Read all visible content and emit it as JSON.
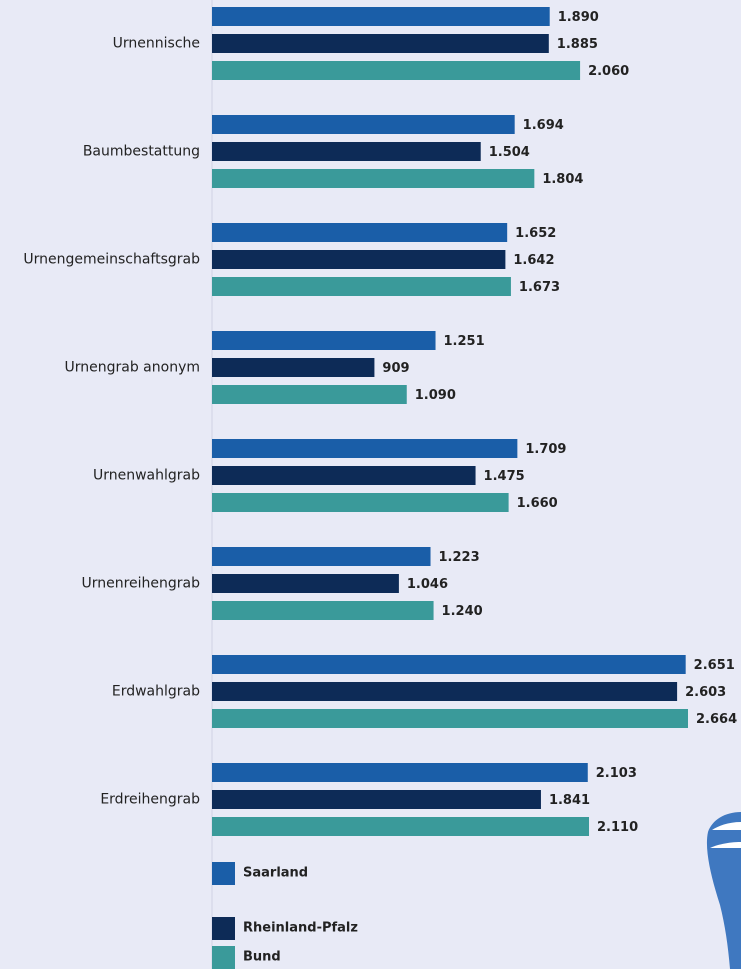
{
  "chart_data": {
    "type": "bar",
    "orientation": "horizontal",
    "categories": [
      "Urnennische",
      "Baumbestattung",
      "Urnengemeinschaftsgrab",
      "Urnengrab anonym",
      "Urnenwahlgrab",
      "Urnenreihengrab",
      "Erdwahlgrab",
      "Erdreihengrab"
    ],
    "series": [
      {
        "name": "Saarland",
        "color": "#1a5ea8",
        "values": [
          1890,
          1694,
          1652,
          1251,
          1709,
          1223,
          2651,
          2103
        ],
        "value_labels": [
          "1.890",
          "1.694",
          "1.652",
          "1.251",
          "1.709",
          "1.223",
          "2.651",
          "2.103"
        ]
      },
      {
        "name": "Rheinland-Pfalz",
        "color": "#0d2b57",
        "values": [
          1885,
          1504,
          1642,
          909,
          1475,
          1046,
          2603,
          1841
        ],
        "value_labels": [
          "1.885",
          "1.504",
          "1.642",
          "909",
          "1.475",
          "1.046",
          "2.603",
          "1.841"
        ]
      },
      {
        "name": "Bund",
        "color": "#3a9a9a",
        "values": [
          2060,
          1804,
          1673,
          1090,
          1660,
          1240,
          2664,
          2110
        ],
        "value_labels": [
          "2.060",
          "1.804",
          "1.673",
          "1.090",
          "1.660",
          "1.240",
          "2.664",
          "2.110"
        ]
      }
    ]
  }
}
